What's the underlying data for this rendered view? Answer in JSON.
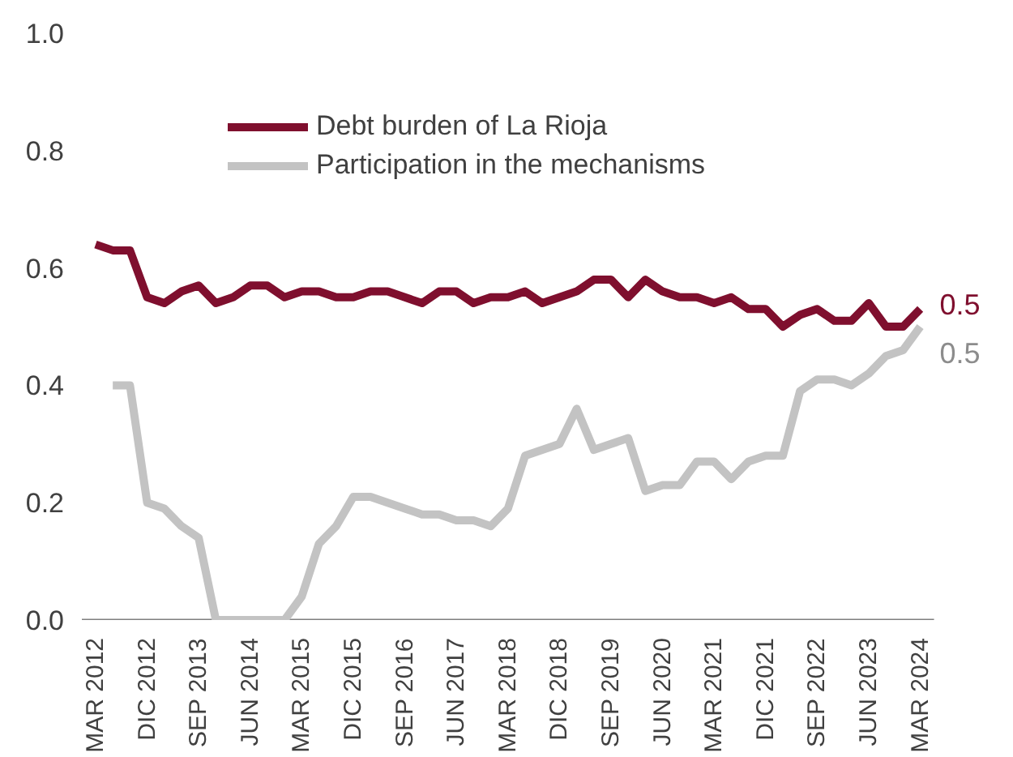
{
  "chart_data": {
    "type": "line",
    "categories": [
      "MAR 2012",
      null,
      null,
      "DIC 2012",
      null,
      null,
      "SEP 2013",
      null,
      null,
      "JUN 2014",
      null,
      null,
      "MAR 2015",
      null,
      null,
      "DIC 2015",
      null,
      null,
      "SEP 2016",
      null,
      null,
      "JUN 2017",
      null,
      null,
      "MAR 2018",
      null,
      null,
      "DIC 2018",
      null,
      null,
      "SEP 2019",
      null,
      null,
      "JUN 2020",
      null,
      null,
      "MAR 2021",
      null,
      null,
      "DIC 2021",
      null,
      null,
      "SEP 2022",
      null,
      null,
      "JUN 2023",
      null,
      null,
      "MAR 2024"
    ],
    "series": [
      {
        "name": "Debt burden of La Rioja",
        "color": "#7f0f2e",
        "values": [
          0.64,
          0.63,
          0.63,
          0.55,
          0.54,
          0.56,
          0.57,
          0.54,
          0.55,
          0.57,
          0.57,
          0.55,
          0.56,
          0.56,
          0.55,
          0.55,
          0.56,
          0.56,
          0.55,
          0.54,
          0.56,
          0.56,
          0.54,
          0.55,
          0.55,
          0.56,
          0.54,
          0.55,
          0.56,
          0.58,
          0.58,
          0.55,
          0.58,
          0.56,
          0.55,
          0.55,
          0.54,
          0.55,
          0.53,
          0.53,
          0.5,
          0.52,
          0.53,
          0.51,
          0.51,
          0.54,
          0.5,
          0.5,
          0.53
        ],
        "value_labels": [
          null,
          null,
          null,
          null,
          null,
          null,
          null,
          null,
          null,
          null,
          null,
          null,
          null,
          null,
          null,
          null,
          null,
          null,
          null,
          null,
          null,
          null,
          null,
          null,
          null,
          null,
          null,
          null,
          null,
          null,
          null,
          null,
          null,
          null,
          null,
          null,
          null,
          null,
          null,
          null,
          null,
          null,
          null,
          null,
          null,
          null,
          null,
          null,
          "0.5"
        ]
      },
      {
        "name": "Participation in the mechanisms",
        "color": "#c3c3c3",
        "values": [
          null,
          0.4,
          0.4,
          0.2,
          0.19,
          0.16,
          0.14,
          0.0,
          0.0,
          0.0,
          0.0,
          0.0,
          0.04,
          0.13,
          0.16,
          0.21,
          0.21,
          0.2,
          0.19,
          0.18,
          0.18,
          0.17,
          0.17,
          0.16,
          0.19,
          0.28,
          0.29,
          0.3,
          0.36,
          0.29,
          0.3,
          0.31,
          0.22,
          0.23,
          0.23,
          0.27,
          0.27,
          0.24,
          0.27,
          0.28,
          0.28,
          0.39,
          0.41,
          0.41,
          0.4,
          0.42,
          0.45,
          0.46,
          0.5
        ],
        "value_labels": [
          null,
          null,
          null,
          null,
          null,
          null,
          null,
          null,
          null,
          null,
          null,
          null,
          null,
          null,
          null,
          null,
          null,
          null,
          null,
          null,
          null,
          null,
          null,
          null,
          null,
          null,
          null,
          null,
          null,
          null,
          null,
          null,
          null,
          null,
          null,
          null,
          null,
          null,
          null,
          null,
          null,
          null,
          null,
          null,
          null,
          null,
          null,
          null,
          "0.5"
        ]
      }
    ],
    "ylim": [
      0,
      1.0
    ],
    "yticks": [
      {
        "value": 0,
        "label": "0.0"
      },
      0.2,
      0.4,
      0.6,
      0.8,
      {
        "value": 1.0,
        "label": "1.0"
      }
    ],
    "grid": false,
    "legend": "top"
  }
}
